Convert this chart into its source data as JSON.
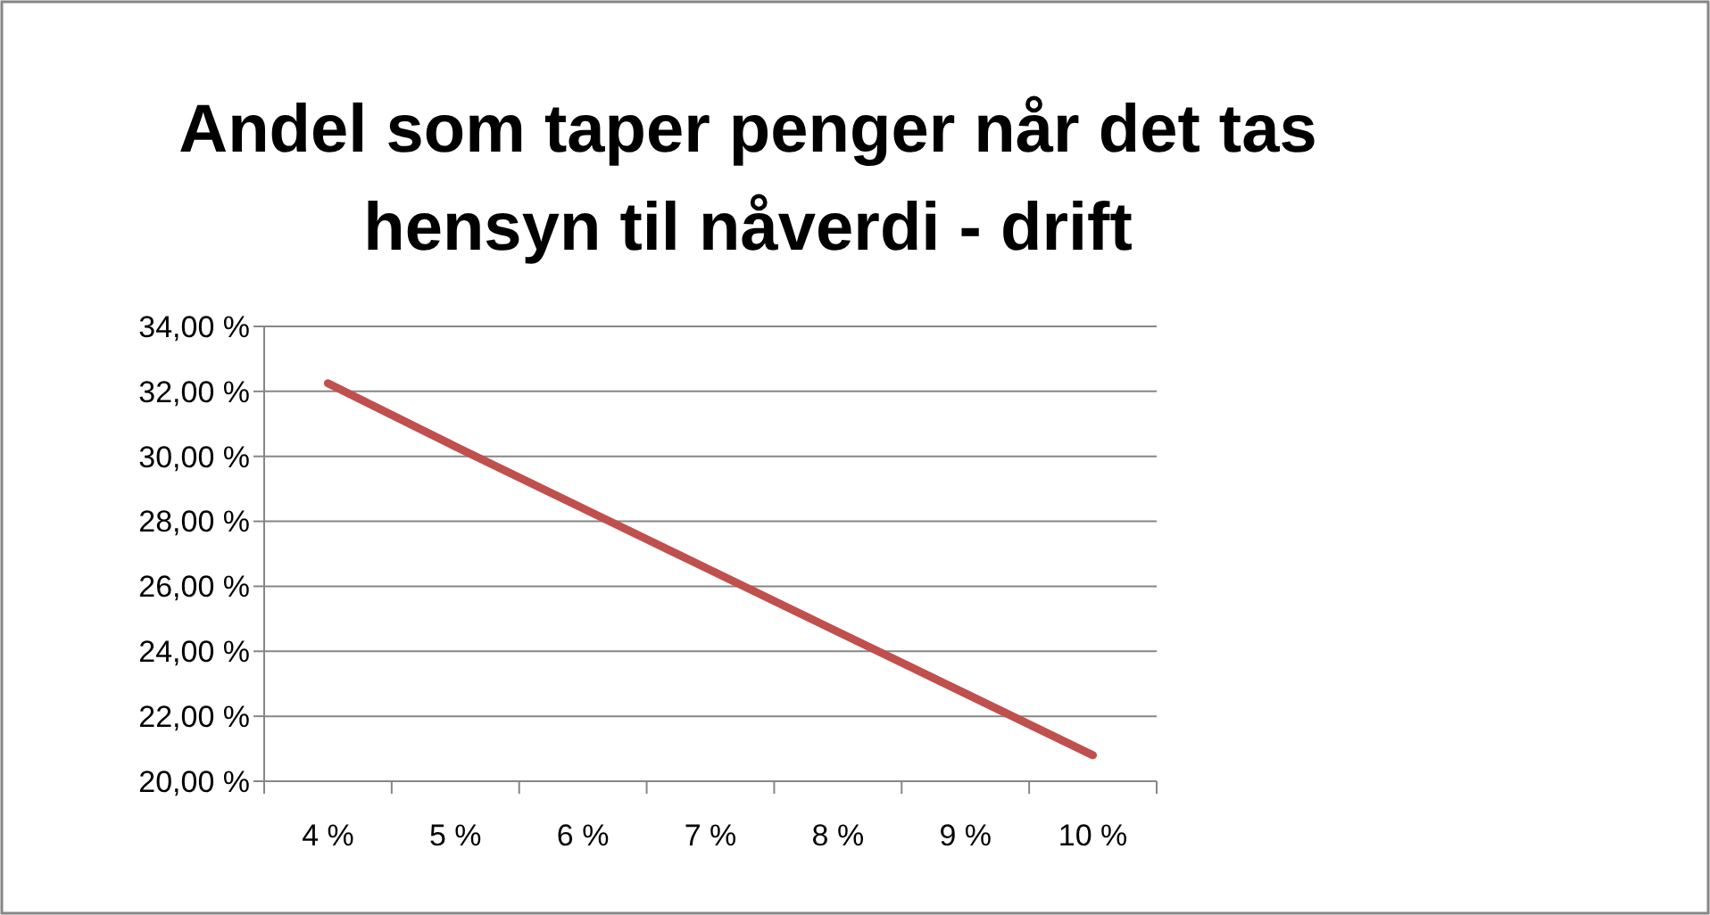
{
  "chart_data": {
    "type": "line",
    "title": "Andel som taper penger når det tas hensyn til nåverdi - drift",
    "categories": [
      "4 %",
      "5 %",
      "6 %",
      "7 %",
      "8 %",
      "9 %",
      "10 %"
    ],
    "series": [
      {
        "color": "#c0504d",
        "values": [
          32.25,
          30.3,
          28.4,
          26.5,
          24.6,
          22.7,
          20.8
        ]
      }
    ],
    "ylim": [
      20,
      34
    ],
    "yticks": [
      {
        "value": 20,
        "label": "20,00 %"
      },
      {
        "value": 22,
        "label": "22,00 %"
      },
      {
        "value": 24,
        "label": "24,00 %"
      },
      {
        "value": 26,
        "label": "26,00 %"
      },
      {
        "value": 28,
        "label": "28,00 %"
      },
      {
        "value": 30,
        "label": "30,00 %"
      },
      {
        "value": 32,
        "label": "32,00 %"
      },
      {
        "value": 34,
        "label": "34,00 %"
      }
    ],
    "grid": "y",
    "marker": "none",
    "line_style": "solid"
  }
}
